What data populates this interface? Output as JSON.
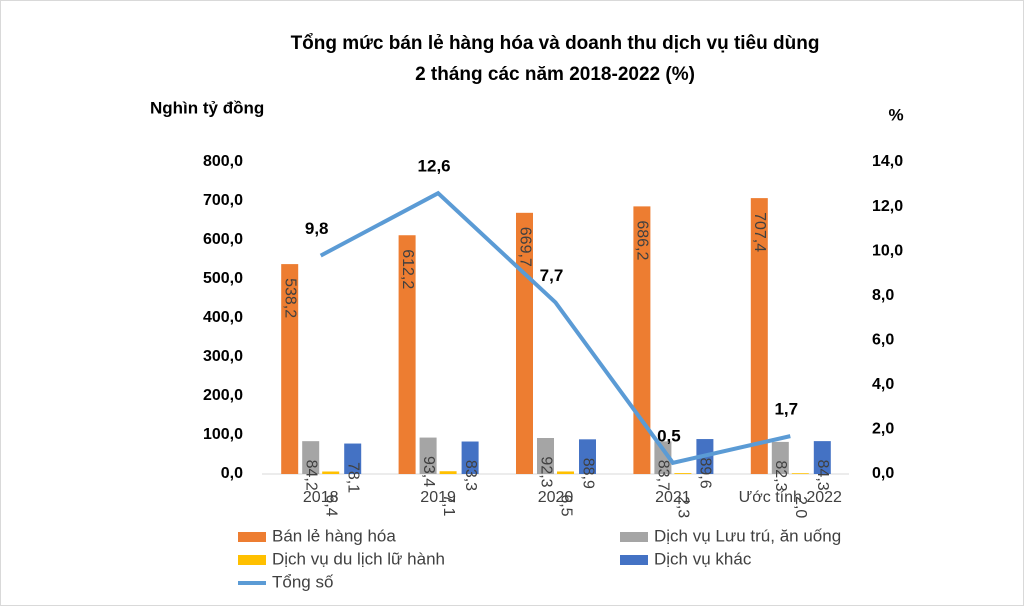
{
  "chart_data": {
    "type": "bar-line",
    "title": [
      "Tổng mức bán lẻ hàng hóa và doanh thu dịch vụ tiêu dùng",
      "2 tháng các năm 2018-2022 (%)"
    ],
    "y_label": "Nghìn tỷ đồng",
    "y2_label": "%",
    "categories": [
      "2018",
      "2019",
      "2020",
      "2021",
      "Ước tính 2022"
    ],
    "series": [
      {
        "name": "Bán lẻ hàng hóa",
        "color": "#ED7D31",
        "values": [
          538.2,
          612.2,
          669.7,
          686.2,
          707.4
        ],
        "value_labels": [
          "538,2",
          "612,2",
          "669,7",
          "686,2",
          "707,4"
        ]
      },
      {
        "name": "Dịch vụ Lưu trú, ăn uống",
        "color": "#A5A5A5",
        "values": [
          84.2,
          93.4,
          92.3,
          83.7,
          82.3
        ],
        "value_labels": [
          "84,2",
          "93,4",
          "92,3",
          "83,7",
          "82,3"
        ]
      },
      {
        "name": "Dịch vụ du lịch lữ hành",
        "color": "#FFC000",
        "values": [
          6.4,
          7.1,
          6.5,
          2.3,
          2.0
        ],
        "value_labels": [
          "6,4",
          "7,1",
          "6,5",
          "2,3",
          "2,0"
        ]
      },
      {
        "name": "Dịch vụ khác",
        "color": "#4472C4",
        "values": [
          78.1,
          83.3,
          88.9,
          89.6,
          84.3
        ],
        "value_labels": [
          "78,1",
          "83,3",
          "88,9",
          "89,6",
          "84,3"
        ]
      },
      {
        "name": "Tổng số",
        "color": "#5B9BD5",
        "axis": "y2",
        "type": "line",
        "values": [
          9.8,
          12.6,
          7.7,
          0.5,
          1.7
        ],
        "value_labels": [
          "9,8",
          "12,6",
          "7,7",
          "0,5",
          "1,7"
        ]
      }
    ],
    "ylim": [
      0,
      800
    ],
    "yticks": [
      {
        "value": 0,
        "label": "0,0"
      },
      {
        "value": 100,
        "label": "100,0"
      },
      {
        "value": 200,
        "label": "200,0"
      },
      {
        "value": 300,
        "label": "300,0"
      },
      {
        "value": 400,
        "label": "400,0"
      },
      {
        "value": 500,
        "label": "500,0"
      },
      {
        "value": 600,
        "label": "600,0"
      },
      {
        "value": 700,
        "label": "700,0"
      },
      {
        "value": 800,
        "label": "800,0"
      }
    ],
    "y2lim": [
      0,
      14
    ],
    "y2ticks": [
      {
        "value": 0,
        "label": "0,0"
      },
      {
        "value": 2,
        "label": "2,0"
      },
      {
        "value": 4,
        "label": "4,0"
      },
      {
        "value": 6,
        "label": "6,0"
      },
      {
        "value": 8,
        "label": "8,0"
      },
      {
        "value": 10,
        "label": "10,0"
      },
      {
        "value": 12,
        "label": "12,0"
      },
      {
        "value": 14,
        "label": "14,0"
      }
    ],
    "grid": false
  }
}
